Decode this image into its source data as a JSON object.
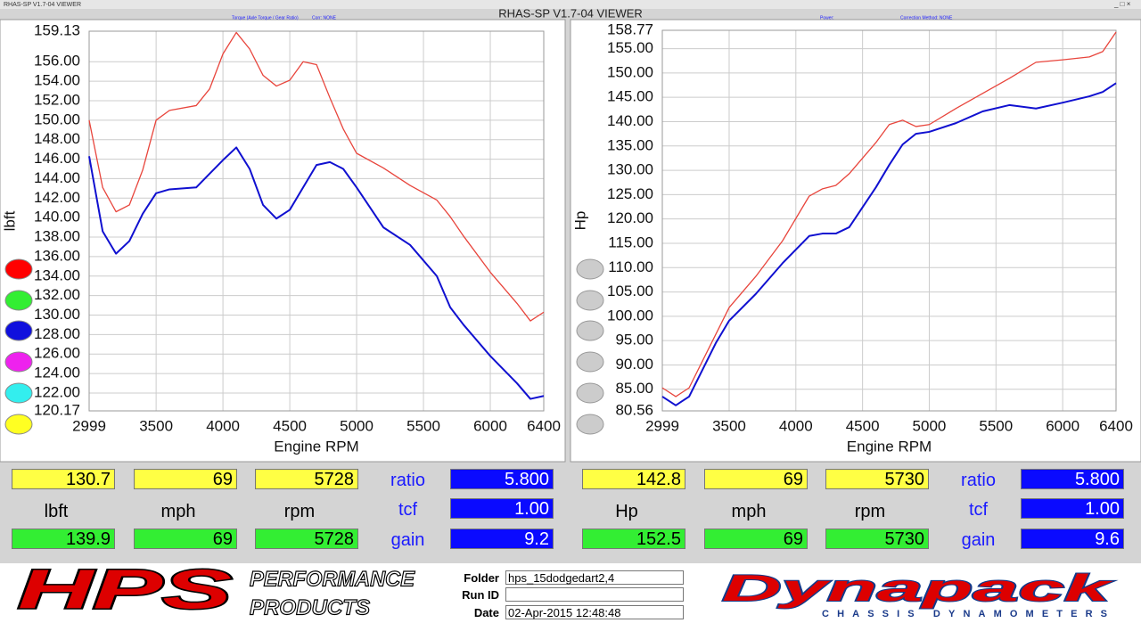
{
  "window": {
    "title": "RHAS-SP V1.7-04  VIEWER",
    "header": "RHAS-SP V1.7-04  VIEWER"
  },
  "chart_data": [
    {
      "type": "line",
      "subtitle": "Torque (Axle Torque / Gear Ratio)",
      "correction": "Corr: NONE",
      "x_label": "Engine RPM",
      "y_label": "lbft",
      "x": [
        2999,
        3100,
        3200,
        3300,
        3400,
        3500,
        3600,
        3800,
        3900,
        4000,
        4100,
        4200,
        4300,
        4400,
        4500,
        4600,
        4700,
        4800,
        4900,
        5000,
        5200,
        5400,
        5600,
        5700,
        5800,
        6000,
        6200,
        6300,
        6400
      ],
      "series": [
        {
          "color": "#e8453c",
          "values": [
            150.0,
            143.1,
            140.6,
            141.3,
            144.9,
            150.0,
            151.0,
            151.5,
            153.2,
            156.8,
            159.0,
            157.3,
            154.6,
            153.5,
            154.1,
            156.0,
            155.7,
            152.3,
            149.1,
            146.6,
            145.1,
            143.3,
            141.8,
            140.1,
            138.1,
            134.4,
            131.2,
            129.4,
            130.3
          ]
        },
        {
          "color": "#1010d0",
          "values": [
            146.3,
            138.6,
            136.3,
            137.6,
            140.4,
            142.5,
            142.9,
            143.1,
            144.5,
            145.9,
            147.2,
            145.0,
            141.3,
            139.9,
            140.8,
            143.1,
            145.4,
            145.7,
            145.0,
            143.1,
            139.0,
            137.2,
            134.0,
            130.8,
            129.0,
            125.8,
            123.0,
            121.4,
            121.7
          ]
        }
      ],
      "xlim": [
        2999,
        6400
      ],
      "xticks": [
        2999,
        3500,
        4000,
        4500,
        5000,
        5500,
        6000,
        6400
      ],
      "ylim": [
        120.17,
        159.13
      ],
      "yticks": [
        120.17,
        {
          "value": 122,
          "label": "122.00"
        },
        {
          "value": 124,
          "label": "124.00"
        },
        {
          "value": 126,
          "label": "126.00"
        },
        {
          "value": 128,
          "label": "128.00"
        },
        {
          "value": 130,
          "label": "130.00"
        },
        {
          "value": 132,
          "label": "132.00"
        },
        {
          "value": 134,
          "label": "134.00"
        },
        {
          "value": 136,
          "label": "136.00"
        },
        {
          "value": 138,
          "label": "138.00"
        },
        {
          "value": 140,
          "label": "140.00"
        },
        {
          "value": 142,
          "label": "142.00"
        },
        {
          "value": 144,
          "label": "144.00"
        },
        {
          "value": 146,
          "label": "146.00"
        },
        {
          "value": 148,
          "label": "148.00"
        },
        {
          "value": 150,
          "label": "150.00"
        },
        {
          "value": 152,
          "label": "152.00"
        },
        {
          "value": 154,
          "label": "154.00"
        },
        {
          "value": 156,
          "label": "156.00"
        },
        159.13
      ],
      "grid": true
    },
    {
      "type": "line",
      "subtitle": "Power:",
      "correction": "Correction Method: NONE",
      "x_label": "Engine RPM",
      "y_label": "Hp",
      "x": [
        2999,
        3100,
        3200,
        3300,
        3400,
        3500,
        3700,
        3900,
        4000,
        4100,
        4200,
        4300,
        4400,
        4600,
        4700,
        4800,
        4900,
        5000,
        5200,
        5400,
        5600,
        5800,
        6000,
        6200,
        6300,
        6400
      ],
      "series": [
        {
          "color": "#e8453c",
          "values": [
            85.3,
            83.5,
            85.3,
            90.8,
            96.3,
            101.8,
            108.2,
            115.5,
            120.1,
            124.7,
            126.2,
            126.9,
            129.3,
            135.7,
            139.4,
            140.3,
            139.0,
            139.4,
            142.7,
            145.8,
            148.9,
            152.2,
            152.7,
            153.3,
            154.4,
            158.4
          ]
        },
        {
          "color": "#1010d0",
          "values": [
            83.5,
            81.7,
            83.5,
            89.0,
            94.5,
            99.1,
            104.6,
            110.9,
            113.7,
            116.5,
            117.0,
            117.0,
            118.3,
            126.5,
            131.1,
            135.3,
            137.5,
            137.9,
            139.7,
            142.1,
            143.4,
            142.7,
            143.9,
            145.2,
            146.1,
            147.9
          ]
        }
      ],
      "xlim": [
        2999,
        6400
      ],
      "xticks": [
        2999,
        3500,
        4000,
        4500,
        5000,
        5500,
        6000,
        6400
      ],
      "ylim": [
        80.56,
        158.77
      ],
      "yticks": [
        80.56,
        {
          "value": 85,
          "label": "85.00"
        },
        {
          "value": 90,
          "label": "90.00"
        },
        {
          "value": 95,
          "label": "95.00"
        },
        {
          "value": 100,
          "label": "100.00"
        },
        {
          "value": 105,
          "label": "105.00"
        },
        {
          "value": 110,
          "label": "110.00"
        },
        {
          "value": 115,
          "label": "115.00"
        },
        {
          "value": 120,
          "label": "120.00"
        },
        {
          "value": 125,
          "label": "125.00"
        },
        {
          "value": 130,
          "label": "130.00"
        },
        {
          "value": 135,
          "label": "135.00"
        },
        {
          "value": 140,
          "label": "140.00"
        },
        {
          "value": 145,
          "label": "145.00"
        },
        {
          "value": 150,
          "label": "150.00"
        },
        {
          "value": 155,
          "label": "155.00"
        },
        158.77
      ],
      "grid": true
    }
  ],
  "readouts": [
    {
      "top": [
        "130.7",
        "69",
        "5728"
      ],
      "labels": [
        "lbft",
        "mph",
        "rpm"
      ],
      "bottom": [
        "139.9",
        "69",
        "5728"
      ],
      "params": [
        "ratio",
        "tcf",
        "gain"
      ],
      "param_values": [
        "5.800",
        "1.00",
        "9.2"
      ]
    },
    {
      "top": [
        "142.8",
        "69",
        "5730"
      ],
      "labels": [
        "Hp",
        "mph",
        "rpm"
      ],
      "bottom": [
        "152.5",
        "69",
        "5730"
      ],
      "params": [
        "ratio",
        "tcf",
        "gain"
      ],
      "param_values": [
        "5.800",
        "1.00",
        "9.6"
      ]
    }
  ],
  "footer": {
    "logo_left": "HPS",
    "logo_left_line1": "PERFORMANCE",
    "logo_left_line2": "PRODUCTS",
    "fields": [
      {
        "label": "Folder",
        "value": "hps_15dodgedart2,4"
      },
      {
        "label": "Run ID",
        "value": ""
      },
      {
        "label": "Date",
        "value": "02-Apr-2015   12:48:48"
      }
    ],
    "logo_right": "Dynapack",
    "logo_right_sub": "CHASSIS   DYNAMOMETERS"
  }
}
